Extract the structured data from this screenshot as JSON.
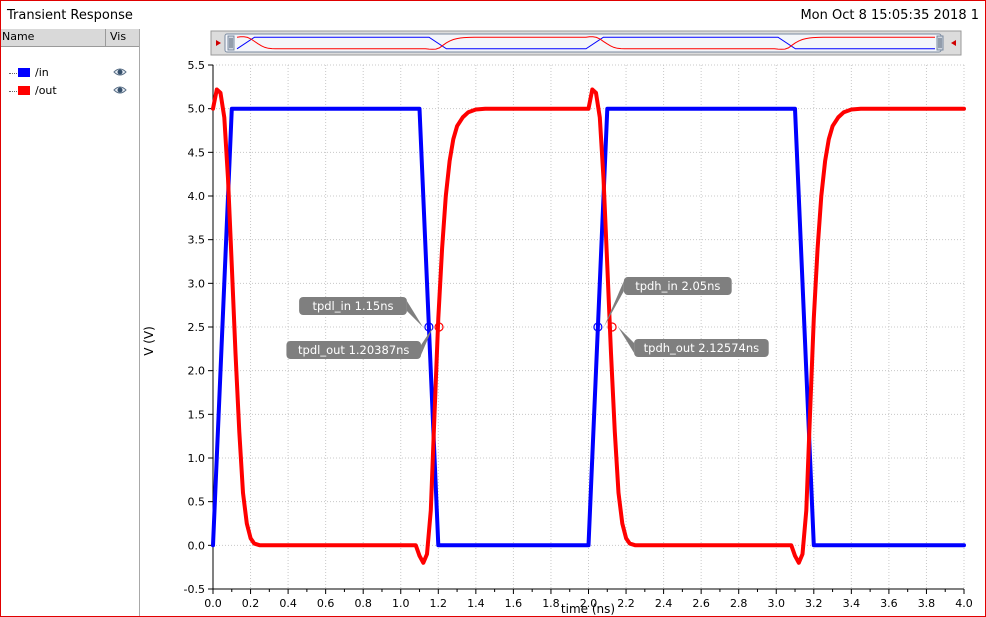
{
  "window": {
    "title": "Transient Response",
    "datetime": "Mon Oct 8 15:05:35 2018  1"
  },
  "legend": {
    "header_name": "Name",
    "header_vis": "Vis",
    "items": [
      {
        "label": "/in",
        "color": "#0000ff",
        "visibility_icon": "eye-icon"
      },
      {
        "label": "/out",
        "color": "#ff0000",
        "visibility_icon": "eye-icon"
      }
    ]
  },
  "chart_data": {
    "type": "line",
    "title": "",
    "xlabel": "time (ns)",
    "ylabel": "V (V)",
    "xlim": [
      0,
      4.0
    ],
    "ylim": [
      -0.5,
      5.5
    ],
    "xticks": [
      "0.0",
      "0.2",
      "0.4",
      "0.6",
      "0.8",
      "1.0",
      "1.2",
      "1.4",
      "1.6",
      "1.8",
      "2.0",
      "2.2",
      "2.4",
      "2.6",
      "2.8",
      "3.0",
      "3.2",
      "3.4",
      "3.6",
      "3.8",
      "4.0"
    ],
    "yticks": [
      "-0.5",
      "0.0",
      "0.5",
      "1.0",
      "1.5",
      "2.0",
      "2.5",
      "3.0",
      "3.5",
      "4.0",
      "4.5",
      "5.0",
      "5.5"
    ],
    "grid": true,
    "series": [
      {
        "name": "/in",
        "color": "#0000ff",
        "x": [
          0.0,
          0.1,
          1.1,
          1.2,
          2.0,
          2.1,
          3.1,
          3.2,
          4.0
        ],
        "y": [
          0.0,
          5.0,
          5.0,
          0.0,
          0.0,
          5.0,
          5.0,
          0.0,
          0.0
        ]
      },
      {
        "name": "/out",
        "color": "#ff0000",
        "x": [
          0.0,
          0.02,
          0.04,
          0.06,
          0.08,
          0.1,
          0.12,
          0.14,
          0.16,
          0.18,
          0.2,
          0.22,
          0.25,
          0.3,
          1.08,
          1.1,
          1.12,
          1.14,
          1.16,
          1.18,
          1.2,
          1.22,
          1.24,
          1.26,
          1.28,
          1.3,
          1.33,
          1.36,
          1.4,
          1.45,
          1.5,
          2.0,
          2.02,
          2.04,
          2.06,
          2.08,
          2.1,
          2.12,
          2.14,
          2.16,
          2.18,
          2.2,
          2.22,
          2.25,
          2.3,
          3.08,
          3.1,
          3.12,
          3.14,
          3.16,
          3.18,
          3.2,
          3.22,
          3.24,
          3.26,
          3.28,
          3.3,
          3.33,
          3.36,
          3.4,
          3.45,
          3.5,
          4.0
        ],
        "y": [
          5.0,
          5.22,
          5.18,
          4.9,
          4.2,
          3.2,
          2.2,
          1.3,
          0.6,
          0.25,
          0.08,
          0.02,
          0.0,
          0.0,
          0.0,
          -0.12,
          -0.2,
          -0.1,
          0.4,
          1.5,
          2.6,
          3.4,
          4.0,
          4.4,
          4.65,
          4.8,
          4.9,
          4.96,
          4.99,
          5.0,
          5.0,
          5.0,
          5.22,
          5.18,
          4.9,
          4.2,
          3.2,
          2.2,
          1.3,
          0.6,
          0.25,
          0.08,
          0.02,
          0.0,
          0.0,
          0.0,
          -0.12,
          -0.2,
          -0.1,
          0.4,
          1.5,
          2.6,
          3.4,
          4.0,
          4.4,
          4.65,
          4.8,
          4.9,
          4.96,
          4.99,
          5.0,
          5.0,
          5.0
        ]
      }
    ],
    "annotations": [
      {
        "label": "tpdl_in 1.15ns",
        "x": 1.15,
        "y": 2.5,
        "series": "/in",
        "side": "above-left"
      },
      {
        "label": "tpdl_out 1.20387ns",
        "x": 1.20387,
        "y": 2.5,
        "series": "/out",
        "side": "below-left"
      },
      {
        "label": "tpdh_in 2.05ns",
        "x": 2.05,
        "y": 2.5,
        "series": "/in",
        "side": "above-right"
      },
      {
        "label": "tpdh_out 2.12574ns",
        "x": 2.12574,
        "y": 2.5,
        "series": "/out",
        "side": "below-right"
      }
    ]
  }
}
